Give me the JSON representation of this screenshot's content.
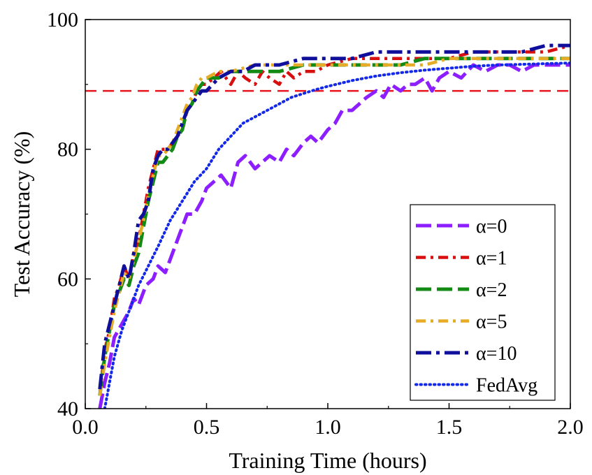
{
  "chart_data": {
    "type": "line",
    "xlabel": "Training Time (hours)",
    "ylabel": "Test Accuracy (%)",
    "xlim": [
      0.0,
      2.0
    ],
    "ylim": [
      40,
      100
    ],
    "x_ticks": [
      "0.0",
      "0.5",
      "1.0",
      "1.5",
      "2.0"
    ],
    "y_ticks": [
      "40",
      "60",
      "80",
      "100"
    ],
    "grid": false,
    "legend_position": "lower-right",
    "reference_line": {
      "y": 89,
      "color": "#e8141e",
      "style": "dashed"
    },
    "series": [
      {
        "name": "α=0",
        "color": "#8c1eff",
        "style": "dash-long",
        "x": [
          0.06,
          0.08,
          0.1,
          0.12,
          0.15,
          0.18,
          0.2,
          0.22,
          0.25,
          0.28,
          0.3,
          0.33,
          0.36,
          0.39,
          0.42,
          0.45,
          0.48,
          0.5,
          0.53,
          0.56,
          0.6,
          0.63,
          0.66,
          0.7,
          0.73,
          0.76,
          0.8,
          0.83,
          0.86,
          0.9,
          0.93,
          0.96,
          1.0,
          1.03,
          1.06,
          1.1,
          1.13,
          1.16,
          1.2,
          1.23,
          1.26,
          1.3,
          1.33,
          1.36,
          1.4,
          1.43,
          1.46,
          1.5,
          1.55,
          1.6,
          1.65,
          1.7,
          1.75,
          1.8,
          1.85,
          1.9,
          1.95,
          2.0
        ],
        "y": [
          40,
          44,
          47,
          51,
          53,
          55,
          57,
          56,
          59,
          60,
          62,
          61,
          64,
          67,
          70,
          70,
          72,
          74,
          75,
          76,
          74,
          78,
          79,
          77,
          78,
          79,
          78,
          80,
          79,
          81,
          82,
          81,
          83,
          84,
          86,
          86,
          87,
          88,
          89,
          88,
          90,
          89,
          90,
          90,
          91,
          89,
          91,
          92,
          91,
          93,
          92,
          93,
          93,
          92,
          93,
          93,
          93,
          93
        ]
      },
      {
        "name": "α=1",
        "color": "#d80f0f",
        "style": "dash-dot",
        "x": [
          0.06,
          0.08,
          0.1,
          0.12,
          0.14,
          0.16,
          0.18,
          0.2,
          0.22,
          0.24,
          0.26,
          0.28,
          0.3,
          0.32,
          0.34,
          0.36,
          0.38,
          0.4,
          0.42,
          0.44,
          0.46,
          0.48,
          0.5,
          0.53,
          0.56,
          0.6,
          0.63,
          0.66,
          0.7,
          0.73,
          0.76,
          0.8,
          0.83,
          0.86,
          0.9,
          0.95,
          1.0,
          1.1,
          1.2,
          1.3,
          1.4,
          1.5,
          1.6,
          1.7,
          1.8,
          1.9,
          2.0
        ],
        "y": [
          42,
          49,
          52,
          57,
          59,
          62,
          60,
          64,
          66,
          70,
          74,
          77,
          80,
          80,
          80,
          81,
          82,
          83,
          86,
          87,
          89,
          90,
          90,
          91,
          92,
          90,
          92,
          91,
          90,
          92,
          91,
          90,
          92,
          91,
          92,
          92,
          93,
          94,
          94,
          94,
          94,
          94,
          95,
          95,
          95,
          95,
          96
        ]
      },
      {
        "name": "α=2",
        "color": "#138a13",
        "style": "dash-long",
        "x": [
          0.06,
          0.08,
          0.1,
          0.12,
          0.14,
          0.16,
          0.18,
          0.2,
          0.22,
          0.24,
          0.26,
          0.28,
          0.3,
          0.32,
          0.34,
          0.36,
          0.38,
          0.4,
          0.42,
          0.44,
          0.46,
          0.48,
          0.5,
          0.55,
          0.6,
          0.7,
          0.8,
          0.9,
          1.0,
          1.1,
          1.2,
          1.3,
          1.4,
          1.5,
          1.6,
          1.7,
          1.8,
          1.9,
          2.0
        ],
        "y": [
          42,
          48,
          52,
          56,
          58,
          60,
          59,
          62,
          64,
          68,
          72,
          75,
          78,
          78,
          79,
          80,
          82,
          83,
          86,
          87,
          89,
          90,
          91,
          91,
          92,
          92,
          92,
          93,
          93,
          93,
          93,
          93,
          94,
          94,
          94,
          94,
          94,
          94,
          94
        ]
      },
      {
        "name": "α=5",
        "color": "#e6ac28",
        "style": "dash-dot",
        "x": [
          0.06,
          0.08,
          0.1,
          0.12,
          0.14,
          0.16,
          0.18,
          0.2,
          0.22,
          0.24,
          0.26,
          0.28,
          0.3,
          0.32,
          0.34,
          0.36,
          0.38,
          0.4,
          0.42,
          0.44,
          0.46,
          0.48,
          0.5,
          0.55,
          0.6,
          0.7,
          0.8,
          0.9,
          1.0,
          1.1,
          1.2,
          1.3,
          1.4,
          1.5,
          1.6,
          1.7,
          1.8,
          1.9,
          2.0
        ],
        "y": [
          42,
          47,
          51,
          55,
          58,
          61,
          60,
          63,
          66,
          69,
          73,
          76,
          79,
          79,
          80,
          81,
          83,
          85,
          87,
          88,
          90,
          91,
          91,
          92,
          92,
          93,
          93,
          93,
          93,
          93,
          93,
          93,
          93,
          94,
          94,
          94,
          94,
          94,
          94
        ]
      },
      {
        "name": "α=10",
        "color": "#0f0f9b",
        "style": "dash-dot-long",
        "x": [
          0.06,
          0.08,
          0.1,
          0.12,
          0.14,
          0.16,
          0.18,
          0.2,
          0.22,
          0.24,
          0.26,
          0.28,
          0.3,
          0.32,
          0.34,
          0.36,
          0.38,
          0.4,
          0.42,
          0.44,
          0.46,
          0.48,
          0.5,
          0.55,
          0.6,
          0.65,
          0.7,
          0.8,
          0.9,
          1.0,
          1.1,
          1.2,
          1.3,
          1.4,
          1.5,
          1.6,
          1.7,
          1.8,
          1.9,
          2.0
        ],
        "y": [
          43,
          50,
          53,
          56,
          59,
          62,
          60,
          64,
          69,
          70,
          72,
          77,
          79,
          80,
          80,
          81,
          82,
          84,
          86,
          87,
          88,
          89,
          89,
          91,
          92,
          92,
          93,
          93,
          94,
          94,
          94,
          95,
          95,
          95,
          95,
          95,
          95,
          95,
          96,
          96
        ]
      },
      {
        "name": "FedAvg",
        "color": "#1428e8",
        "style": "dotted",
        "x": [
          0.08,
          0.1,
          0.12,
          0.15,
          0.18,
          0.22,
          0.26,
          0.3,
          0.35,
          0.4,
          0.45,
          0.5,
          0.55,
          0.6,
          0.65,
          0.7,
          0.75,
          0.8,
          0.85,
          0.9,
          0.95,
          1.0,
          1.1,
          1.2,
          1.3,
          1.4,
          1.5,
          1.6,
          1.7,
          1.8,
          1.9,
          2.0
        ],
        "y": [
          40,
          44,
          48,
          52,
          55,
          59,
          62,
          65,
          69,
          72,
          75,
          77,
          80,
          82,
          84,
          85,
          86,
          87,
          88,
          88.6,
          89.2,
          89.7,
          90.6,
          91.3,
          91.8,
          92.2,
          92.5,
          92.8,
          93,
          93.1,
          93.2,
          93.3
        ]
      }
    ]
  }
}
